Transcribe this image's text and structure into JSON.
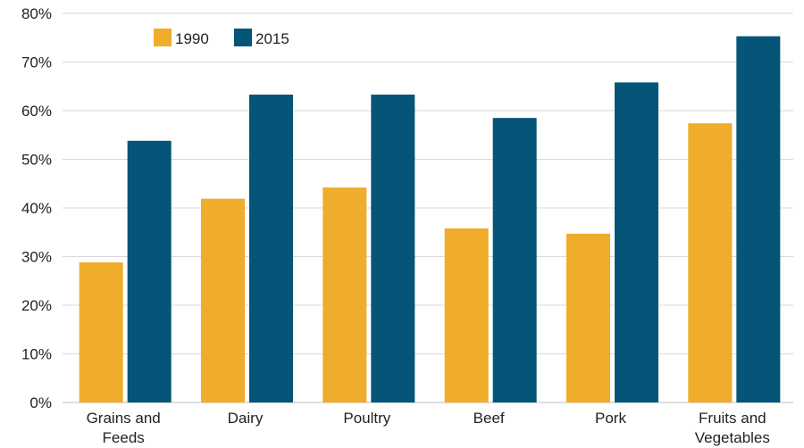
{
  "chart_data": {
    "type": "bar",
    "title": "",
    "xlabel": "",
    "ylabel": "",
    "categories": [
      [
        "Grains and",
        "Feeds"
      ],
      [
        "Dairy"
      ],
      [
        "Poultry"
      ],
      [
        "Beef"
      ],
      [
        "Pork"
      ],
      [
        "Fruits and",
        "Vegetables"
      ]
    ],
    "series": [
      {
        "name": "1990",
        "color": "#F0AC2B",
        "values": [
          0.288,
          0.419,
          0.442,
          0.358,
          0.347,
          0.574
        ]
      },
      {
        "name": "2015",
        "color": "#045577",
        "values": [
          0.538,
          0.633,
          0.633,
          0.585,
          0.658,
          0.753
        ]
      }
    ],
    "ylim": [
      0,
      0.8
    ],
    "yticks": [
      0,
      0.1,
      0.2,
      0.3,
      0.4,
      0.5,
      0.6,
      0.7,
      0.8
    ],
    "ytick_labels": [
      "0%",
      "10%",
      "20%",
      "30%",
      "40%",
      "50%",
      "60%",
      "70%",
      "80%"
    ],
    "grid": true,
    "legend_position": "top-left"
  }
}
